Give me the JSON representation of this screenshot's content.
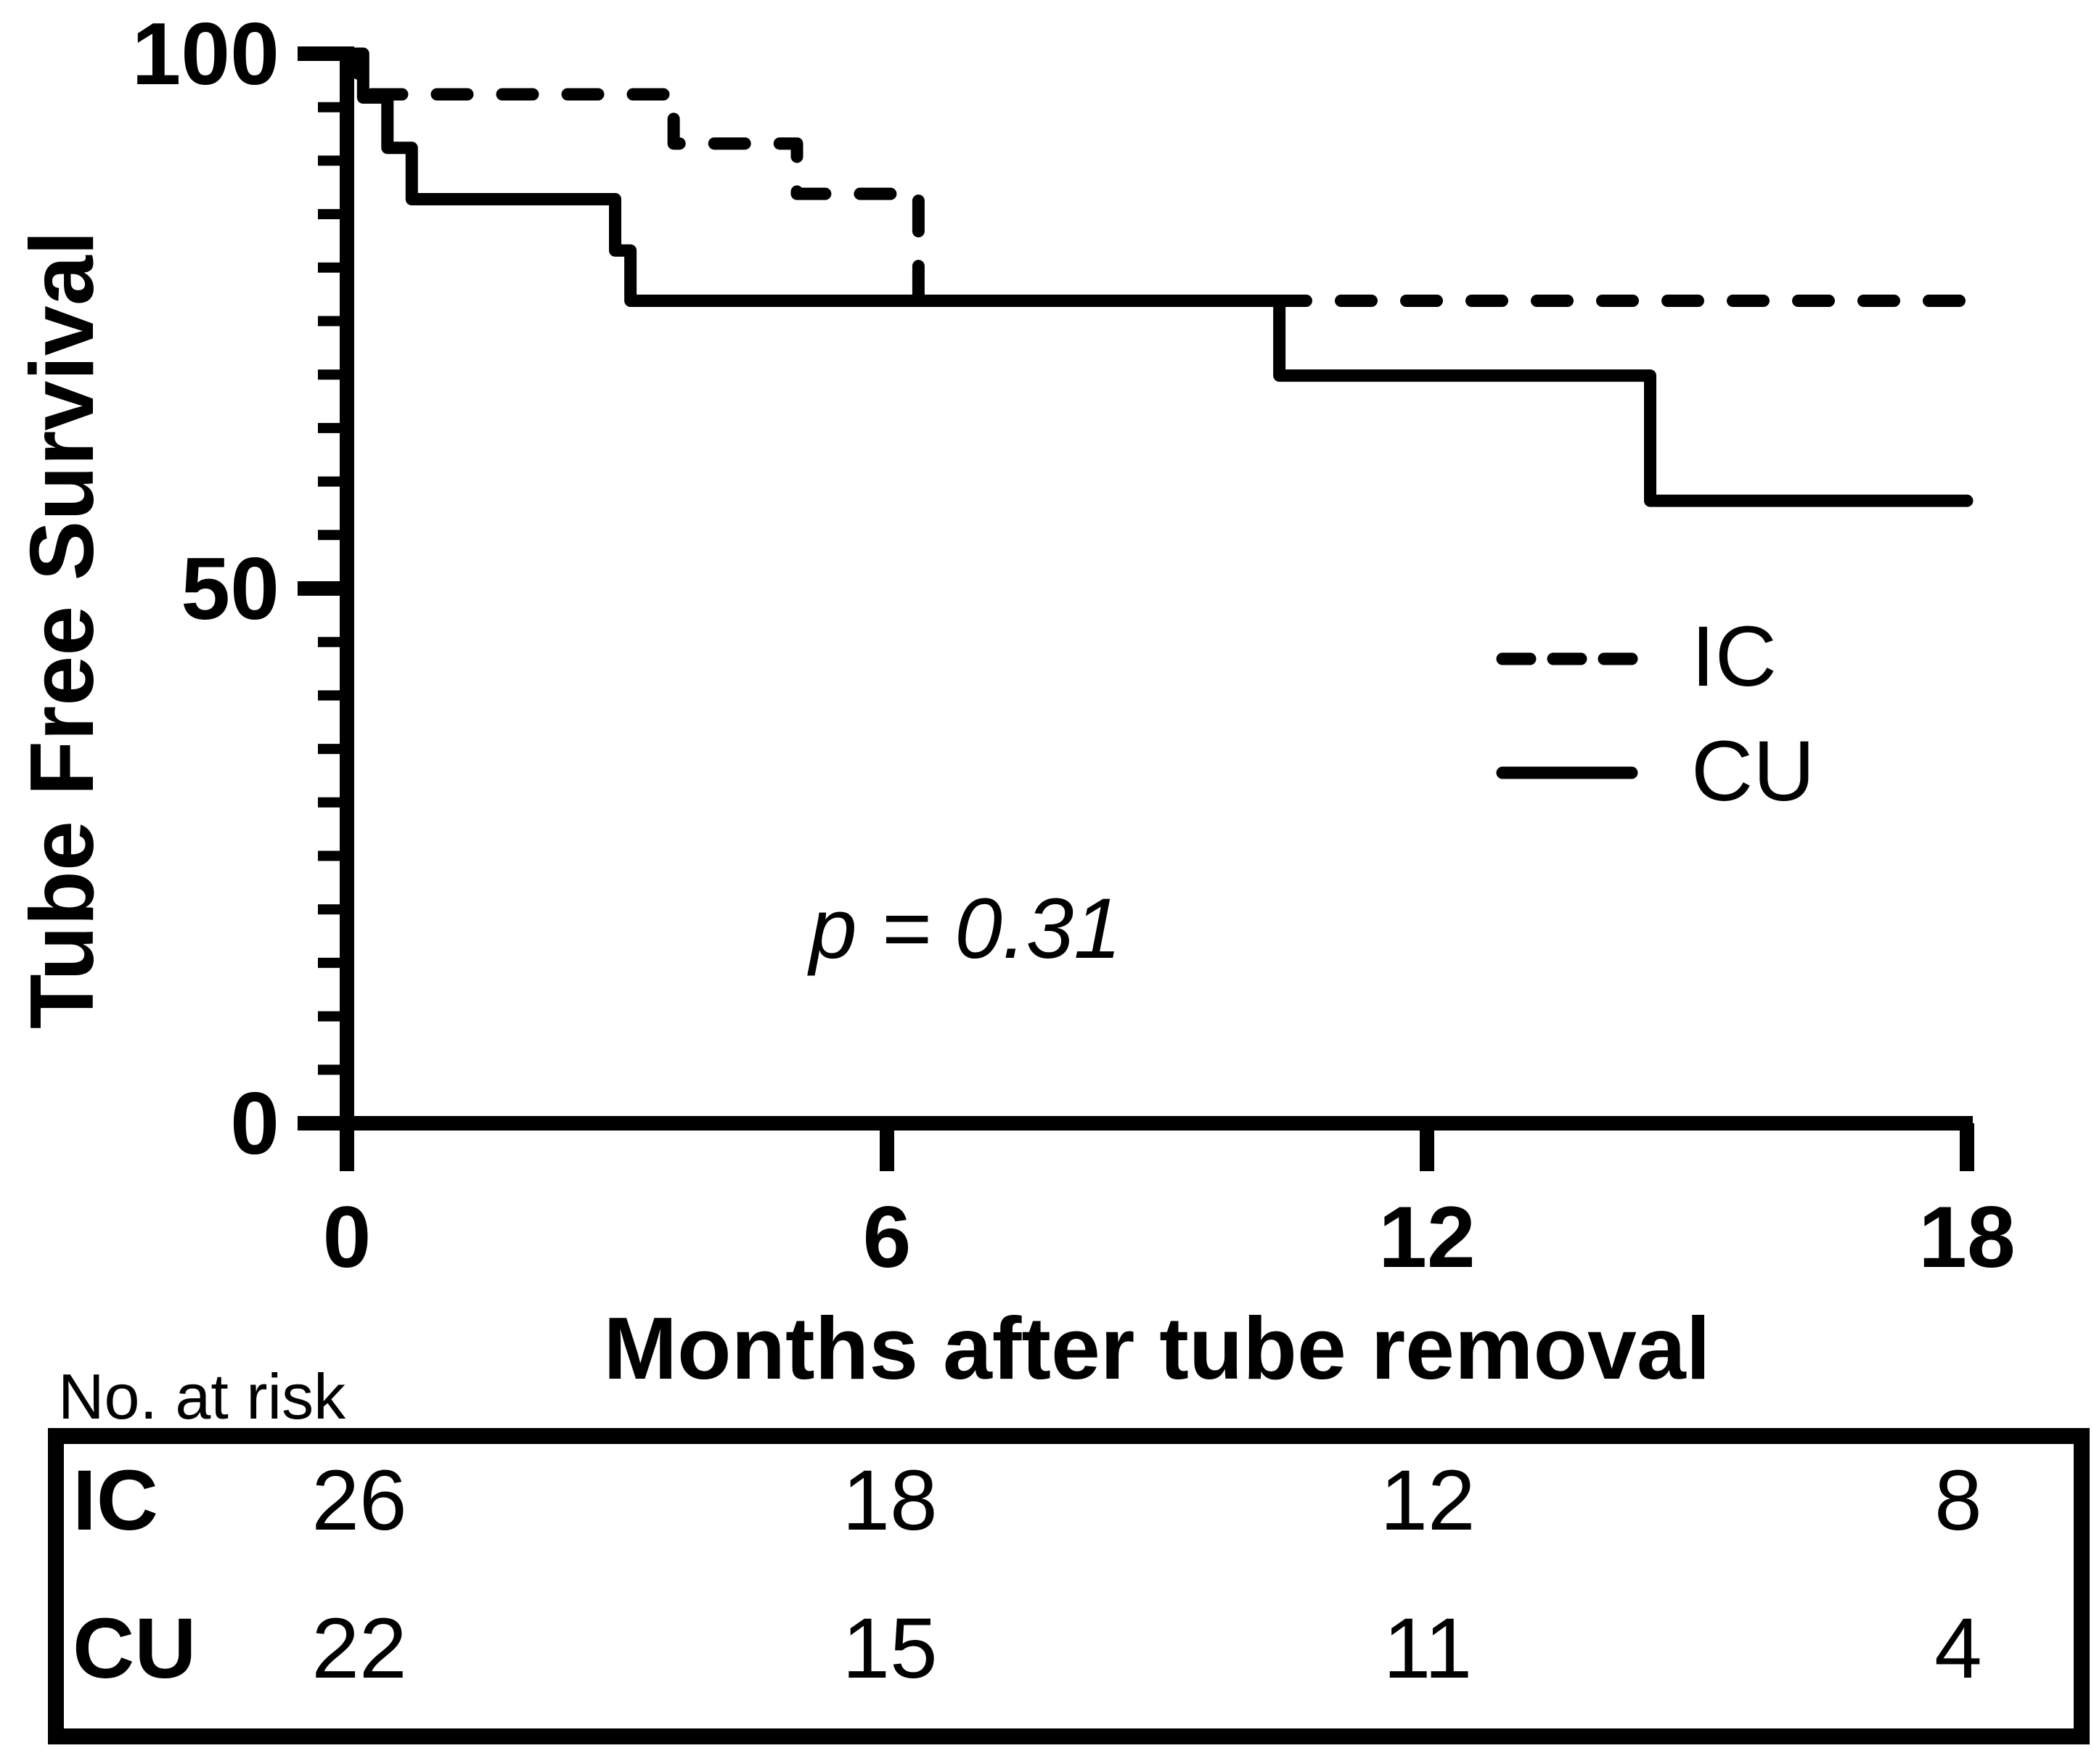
{
  "page": {
    "background": "#ffffff",
    "ink": "#000000"
  },
  "y_axis": {
    "title": "Tube Free Survival",
    "ticks": [
      {
        "label": "100",
        "value": 100
      },
      {
        "label": "50",
        "value": 50
      },
      {
        "label": "0",
        "value": 0
      }
    ],
    "minor_step": 5,
    "range": [
      0,
      100
    ]
  },
  "x_axis": {
    "title": "Months after tube removal",
    "ticks": [
      {
        "label": "0",
        "value": 0
      },
      {
        "label": "6",
        "value": 6
      },
      {
        "label": "12",
        "value": 12
      },
      {
        "label": "18",
        "value": 18
      }
    ],
    "range": [
      0,
      18
    ]
  },
  "annotation": {
    "p_value": "p = 0.31"
  },
  "legend": {
    "items": [
      {
        "label": "IC",
        "line_style": "dashed"
      },
      {
        "label": "CU",
        "line_style": "solid"
      }
    ]
  },
  "risk_table": {
    "caption": "No. at risk",
    "rows": [
      {
        "label": "IC",
        "values": [
          "26",
          "18",
          "12",
          "8"
        ]
      },
      {
        "label": "CU",
        "values": [
          "22",
          "15",
          "11",
          "4"
        ]
      }
    ]
  },
  "chart_data": {
    "type": "line",
    "subtype": "kaplan-meier-step",
    "title": "",
    "xlabel": "Months after tube removal",
    "ylabel": "Tube Free Survival",
    "xlim": [
      0,
      18
    ],
    "ylim": [
      0,
      100
    ],
    "x_ticks": [
      0,
      6,
      12,
      18
    ],
    "y_ticks": [
      0,
      50,
      100
    ],
    "y_minor_tick_step": 5,
    "grid": false,
    "legend_position": "right-middle",
    "annotations": [
      {
        "text": "p = 0.31",
        "x": 6.9,
        "y": 18
      }
    ],
    "series": [
      {
        "name": "IC",
        "style": "dashed",
        "steps": [
          [
            0,
            100
          ],
          [
            0.12,
            96.2
          ],
          [
            3.63,
            91.6
          ],
          [
            5.0,
            86.9
          ],
          [
            6.35,
            76.9
          ],
          [
            18,
            76.9
          ]
        ]
      },
      {
        "name": "CU",
        "style": "solid",
        "steps": [
          [
            0,
            100
          ],
          [
            0.18,
            95.9
          ],
          [
            0.45,
            91.2
          ],
          [
            0.72,
            86.4
          ],
          [
            2.98,
            81.6
          ],
          [
            3.15,
            76.9
          ],
          [
            10.36,
            69.9
          ],
          [
            14.48,
            58.2
          ],
          [
            18,
            58.2
          ]
        ]
      }
    ]
  }
}
